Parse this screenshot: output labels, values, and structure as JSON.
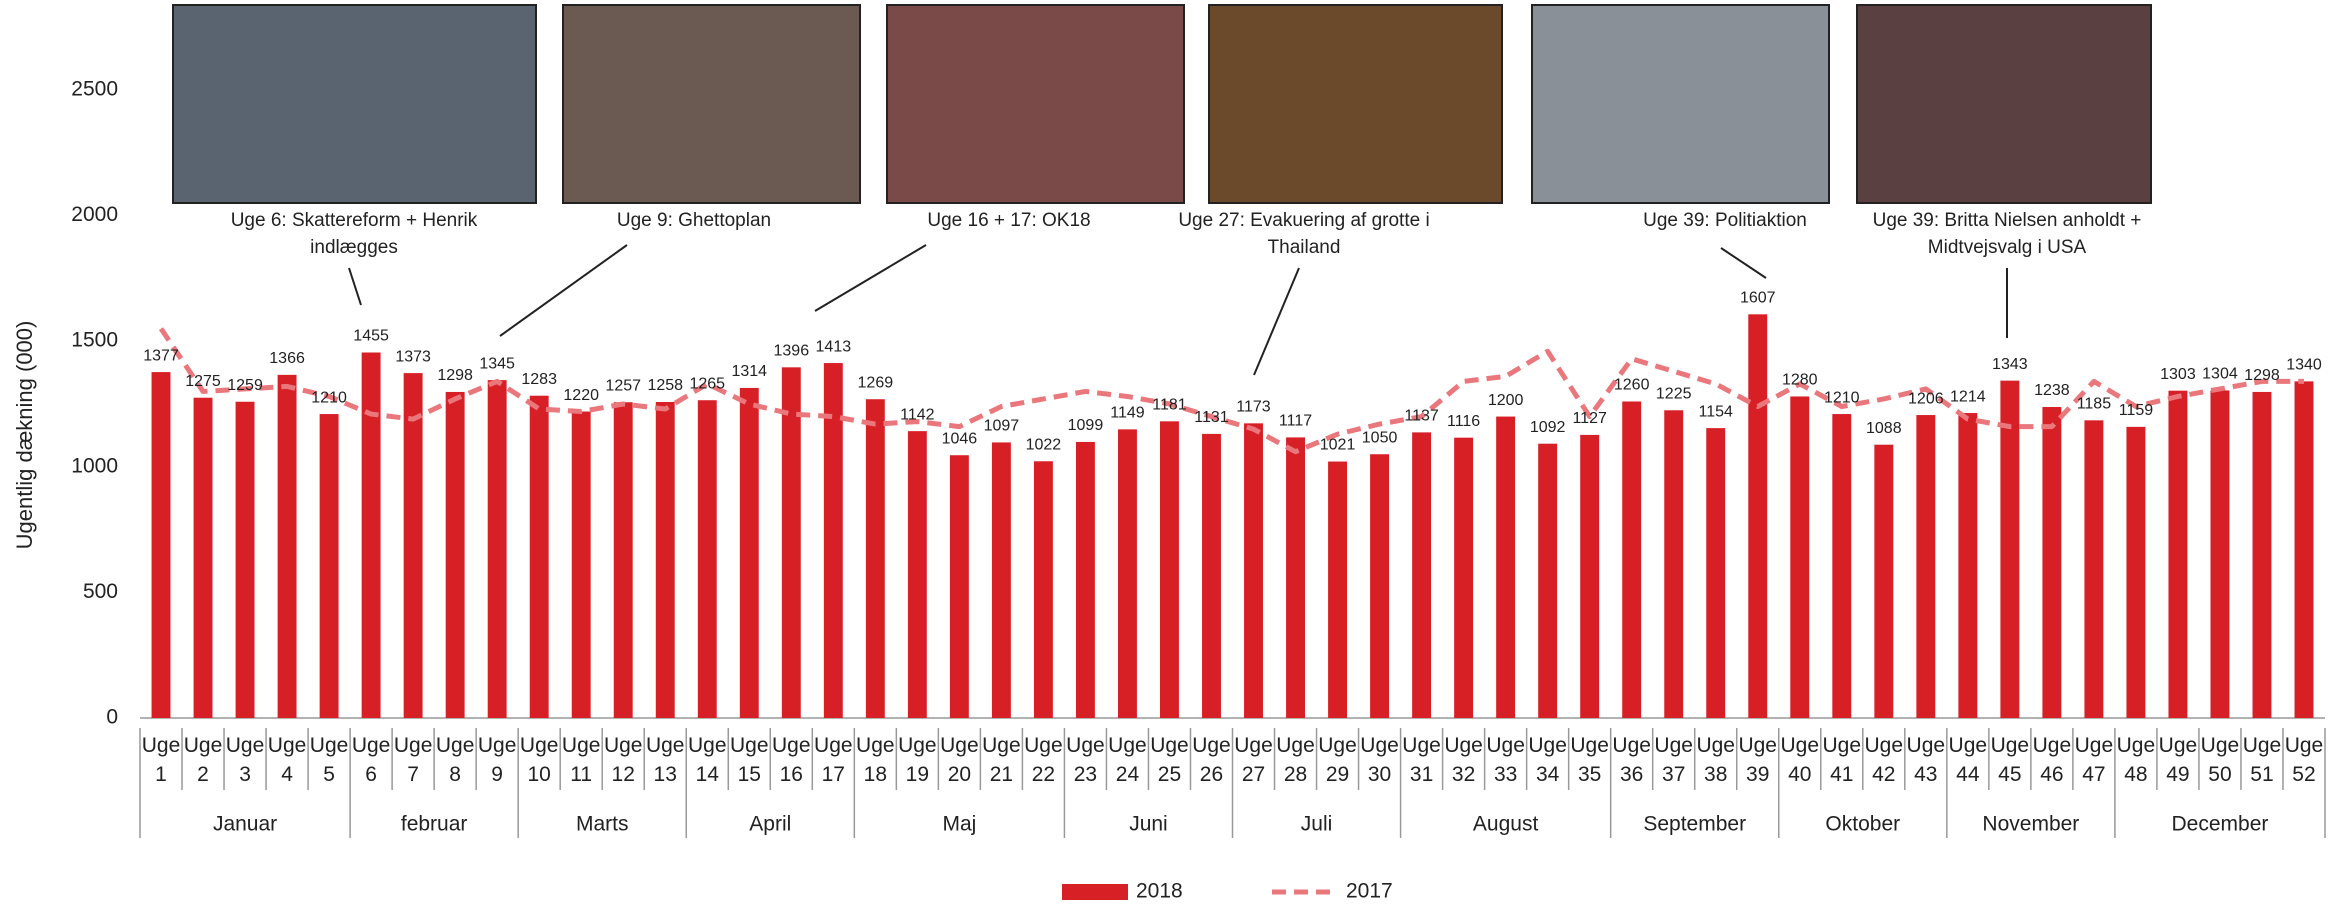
{
  "chart_data": {
    "type": "bar",
    "y_label": "Ugentlig dækning (000)",
    "categories": [
      "Uge 1",
      "Uge 2",
      "Uge 3",
      "Uge 4",
      "Uge 5",
      "Uge 6",
      "Uge 7",
      "Uge 8",
      "Uge 9",
      "Uge 10",
      "Uge 11",
      "Uge 12",
      "Uge 13",
      "Uge 14",
      "Uge 15",
      "Uge 16",
      "Uge 17",
      "Uge 18",
      "Uge 19",
      "Uge 20",
      "Uge 21",
      "Uge 22",
      "Uge 23",
      "Uge 24",
      "Uge 25",
      "Uge 26",
      "Uge 27",
      "Uge 28",
      "Uge 29",
      "Uge 30",
      "Uge 31",
      "Uge 32",
      "Uge 33",
      "Uge 34",
      "Uge 35",
      "Uge 36",
      "Uge 37",
      "Uge 38",
      "Uge 39",
      "Uge 40",
      "Uge 41",
      "Uge 42",
      "Uge 43",
      "Uge 44",
      "Uge 45",
      "Uge 46",
      "Uge 47",
      "Uge 48",
      "Uge 49",
      "Uge 50",
      "Uge 51",
      "Uge 52"
    ],
    "months": [
      "Januar",
      "februar",
      "Marts",
      "April",
      "Maj",
      "Juni",
      "Juli",
      "August",
      "September",
      "Oktober",
      "November",
      "December"
    ],
    "series": [
      {
        "name": "2018",
        "type": "bar",
        "color": "#d71f26",
        "values": [
          1377,
          1275,
          1259,
          1366,
          1210,
          1455,
          1373,
          1298,
          1345,
          1283,
          1220,
          1257,
          1258,
          1265,
          1314,
          1396,
          1413,
          1269,
          1142,
          1046,
          1097,
          1022,
          1099,
          1149,
          1181,
          1131,
          1173,
          1117,
          1021,
          1050,
          1137,
          1116,
          1200,
          1092,
          1127,
          1260,
          1225,
          1154,
          1607,
          1280,
          1210,
          1088,
          1206,
          1214,
          1343,
          1238,
          1185,
          1159,
          1303,
          1304,
          1298,
          1340
        ]
      },
      {
        "name": "2017",
        "type": "line",
        "color": "#e9777c",
        "dashed": true,
        "values": [
          1550,
          1300,
          1310,
          1320,
          1280,
          1210,
          1190,
          1270,
          1340,
          1230,
          1220,
          1250,
          1230,
          1330,
          1250,
          1210,
          1200,
          1170,
          1180,
          1160,
          1240,
          1270,
          1300,
          1280,
          1250,
          1200,
          1150,
          1060,
          1130,
          1170,
          1200,
          1340,
          1360,
          1460,
          1200,
          1430,
          1380,
          1330,
          1240,
          1330,
          1240,
          1270,
          1310,
          1190,
          1160,
          1160,
          1340,
          1240,
          1280,
          1310,
          1340,
          1340
        ]
      }
    ],
    "ylim": [
      0,
      2500
    ],
    "yticks": [
      0,
      500,
      1000,
      1500,
      2000,
      2500
    ],
    "annotations": [
      {
        "lines": [
          "Uge 6: Skattereform + Henrik",
          "indlægges"
        ]
      },
      {
        "lines": [
          "Uge 9: Ghettoplan"
        ]
      },
      {
        "lines": [
          "Uge 16 + 17: OK18"
        ]
      },
      {
        "lines": [
          "Uge 27: Evakuering af grotte i",
          "Thailand"
        ]
      },
      {
        "lines": [
          "Uge 39: Politiaktion"
        ]
      },
      {
        "lines": [
          "Uge 39: Britta Nielsen anholdt +",
          "Midtvejsvalg i USA"
        ]
      }
    ]
  }
}
